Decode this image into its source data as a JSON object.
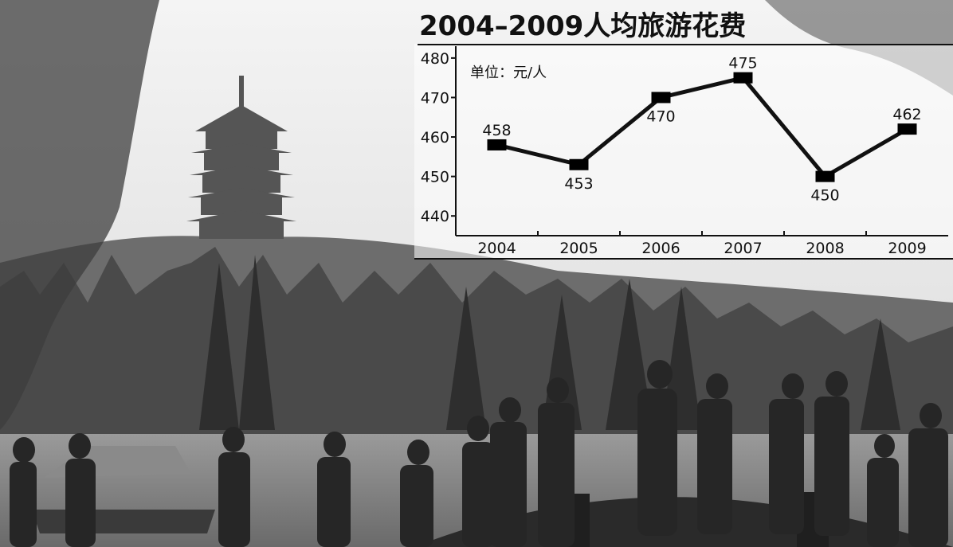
{
  "chart_data": {
    "type": "line",
    "title": "2004–2009人均旅游花费",
    "unit_note": "单位：元/人",
    "categories": [
      "2004",
      "2005",
      "2006",
      "2007",
      "2008",
      "2009"
    ],
    "series": [
      {
        "values": [
          458,
          453,
          470,
          475,
          450,
          462
        ]
      }
    ],
    "data_labels": [
      "458",
      "453",
      "470",
      "475",
      "450",
      "462"
    ],
    "y_ticks": [
      "440",
      "450",
      "460",
      "470",
      "480"
    ],
    "ylim": [
      435,
      483
    ],
    "grid": false,
    "legend": "none",
    "colors": {
      "line": "#111111",
      "marker": "#000000",
      "text": "#111111"
    }
  }
}
